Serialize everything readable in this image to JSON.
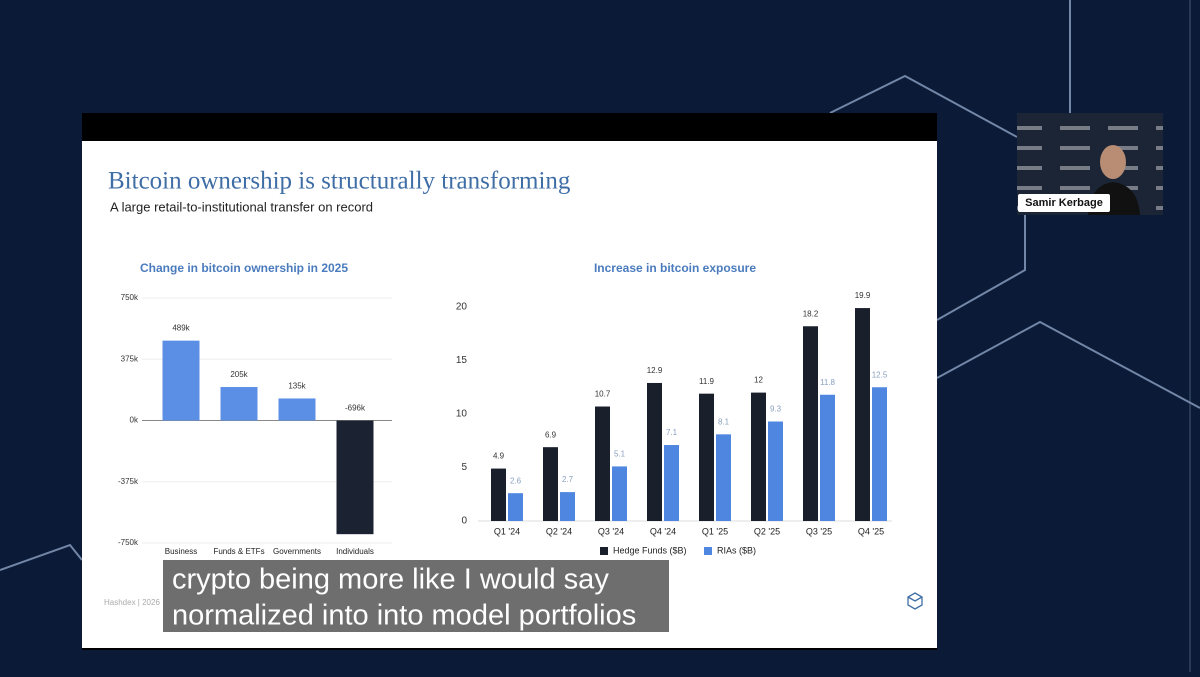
{
  "slide": {
    "title": "Bitcoin ownership is structurally transforming",
    "subtitle": "A large retail-to-institutional transfer on record",
    "footer": "Hashdex | 2026"
  },
  "speaker": "Samir Kerbage",
  "caption": [
    "crypto being more like I would say",
    "normalized into into model portfolios"
  ],
  "chart_data": [
    {
      "type": "bar",
      "title": "Change in bitcoin ownership in 2025",
      "categories": [
        "Business",
        "Funds & ETFs",
        "Governments",
        "Individuals"
      ],
      "values": [
        489000,
        205000,
        135000,
        -696000
      ],
      "value_labels": [
        "489k",
        "205k",
        "135k",
        "-696k"
      ],
      "colors": [
        "#5b8fe6",
        "#5b8fe6",
        "#5b8fe6",
        "#1b2231"
      ],
      "ylim": [
        -750000,
        750000
      ],
      "yticks": [
        {
          "value": 750000,
          "label": "750k"
        },
        {
          "value": 375000,
          "label": "375k"
        },
        {
          "value": 0,
          "label": "0k"
        },
        {
          "value": -375000,
          "label": "-375k"
        },
        {
          "value": -750000,
          "label": "-750k"
        }
      ],
      "grid": true
    },
    {
      "type": "grouped_bar",
      "title": "Increase in bitcoin exposure",
      "categories": [
        "Q1 '24",
        "Q2 '24",
        "Q3 '24",
        "Q4 '24",
        "Q1 '25",
        "Q2 '25",
        "Q3 '25",
        "Q4 '25"
      ],
      "series": [
        {
          "name": "Hedge Funds ($B)",
          "color": "#1a1f2c",
          "values": [
            4.9,
            6.9,
            10.7,
            12.9,
            11.9,
            12,
            18.2,
            19.9
          ]
        },
        {
          "name": "RIAs ($B)",
          "color": "#4f86e0",
          "values": [
            2.6,
            2.7,
            5.1,
            7.1,
            8.1,
            9.3,
            11.8,
            12.5
          ]
        }
      ],
      "ylim": [
        0,
        20
      ],
      "yticks": [
        0,
        5,
        10,
        15,
        20
      ],
      "grid": false,
      "legend": "bottom"
    }
  ]
}
